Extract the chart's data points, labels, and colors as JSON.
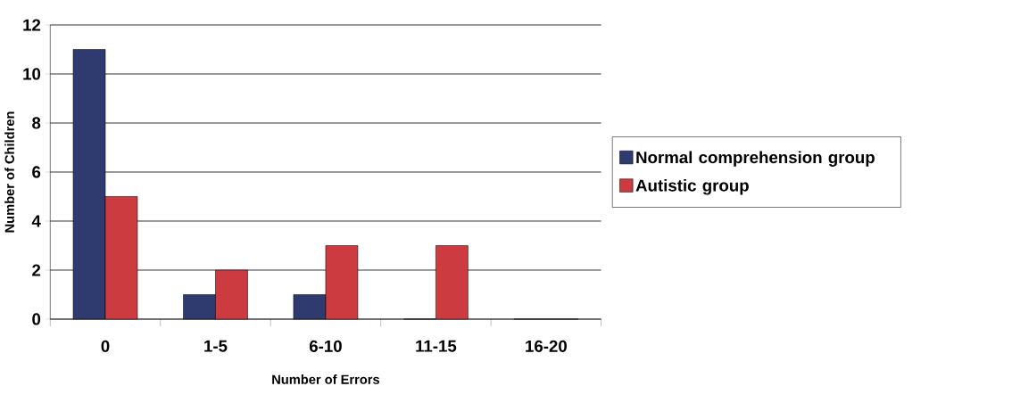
{
  "chart_data": {
    "type": "bar",
    "xlabel": "Number of Errors",
    "ylabel": "Number of Children",
    "categories": [
      "0",
      "1-5",
      "6-10",
      "11-15",
      "16-20"
    ],
    "series": [
      {
        "name": "Normal comprehension group",
        "color": "#2f3a6e",
        "values": [
          11,
          1,
          1,
          0,
          0
        ]
      },
      {
        "name": "Autistic group",
        "color": "#cc3b40",
        "values": [
          5,
          2,
          3,
          3,
          0
        ]
      }
    ],
    "ylim": [
      0,
      12
    ],
    "yticks": [
      0,
      2,
      4,
      6,
      8,
      10,
      12
    ],
    "grid": "y",
    "legend": "right"
  }
}
